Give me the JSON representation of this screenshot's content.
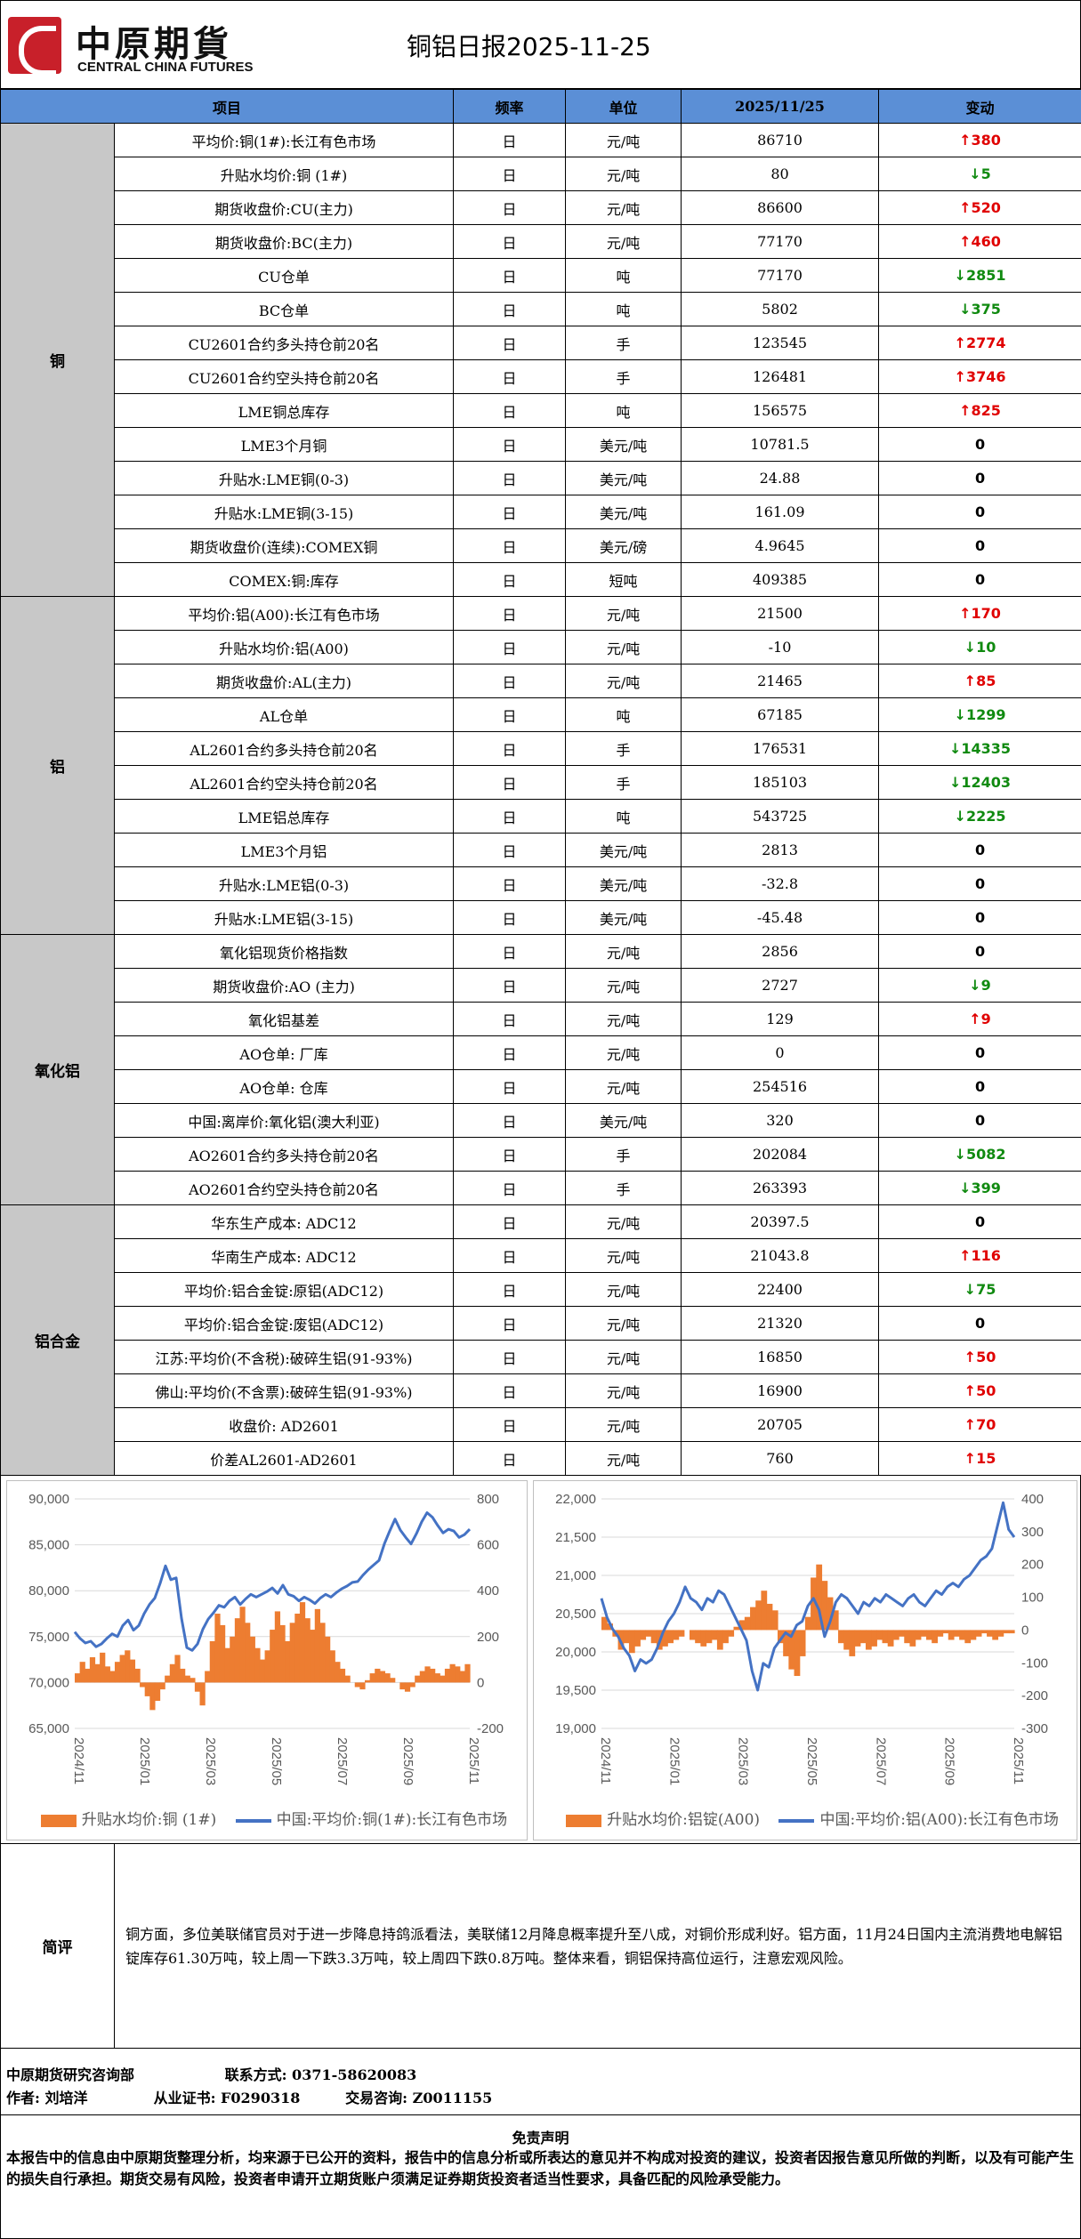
{
  "header": {
    "logo_cn": "中原期貨",
    "logo_en": "CENTRAL CHINA FUTURES",
    "title": "铜铝日报2025-11-25"
  },
  "table": {
    "columns": [
      "项目",
      "频率",
      "单位",
      "2025/11/25",
      "变动"
    ],
    "groups": [
      {
        "name": "铜",
        "rows": [
          {
            "item": "平均价:铜(1#):长江有色市场",
            "freq": "日",
            "unit": "元/吨",
            "value": "86710",
            "dir": "up",
            "change": "380"
          },
          {
            "item": "升贴水均价:铜 (1#)",
            "freq": "日",
            "unit": "元/吨",
            "value": "80",
            "dir": "down",
            "change": "5"
          },
          {
            "item": "期货收盘价:CU(主力)",
            "freq": "日",
            "unit": "元/吨",
            "value": "86600",
            "dir": "up",
            "change": "520"
          },
          {
            "item": "期货收盘价:BC(主力)",
            "freq": "日",
            "unit": "元/吨",
            "value": "77170",
            "dir": "up",
            "change": "460"
          },
          {
            "item": "CU仓单",
            "freq": "日",
            "unit": "吨",
            "value": "77170",
            "dir": "down",
            "change": "2851"
          },
          {
            "item": "BC仓单",
            "freq": "日",
            "unit": "吨",
            "value": "5802",
            "dir": "down",
            "change": "375"
          },
          {
            "item": "CU2601合约多头持仓前20名",
            "freq": "日",
            "unit": "手",
            "value": "123545",
            "dir": "up",
            "change": "2774"
          },
          {
            "item": "CU2601合约空头持仓前20名",
            "freq": "日",
            "unit": "手",
            "value": "126481",
            "dir": "up",
            "change": "3746"
          },
          {
            "item": "LME铜总库存",
            "freq": "日",
            "unit": "吨",
            "value": "156575",
            "dir": "up",
            "change": "825"
          },
          {
            "item": "LME3个月铜",
            "freq": "日",
            "unit": "美元/吨",
            "value": "10781.5",
            "dir": "flat",
            "change": "0"
          },
          {
            "item": "升贴水:LME铜(0-3)",
            "freq": "日",
            "unit": "美元/吨",
            "value": "24.88",
            "dir": "flat",
            "change": "0"
          },
          {
            "item": "升贴水:LME铜(3-15)",
            "freq": "日",
            "unit": "美元/吨",
            "value": "161.09",
            "dir": "flat",
            "change": "0"
          },
          {
            "item": "期货收盘价(连续):COMEX铜",
            "freq": "日",
            "unit": "美元/磅",
            "value": "4.9645",
            "dir": "flat",
            "change": "0"
          },
          {
            "item": "COMEX:铜:库存",
            "freq": "日",
            "unit": "短吨",
            "value": "409385",
            "dir": "flat",
            "change": "0"
          }
        ]
      },
      {
        "name": "铝",
        "rows": [
          {
            "item": "平均价:铝(A00):长江有色市场",
            "freq": "日",
            "unit": "元/吨",
            "value": "21500",
            "dir": "up",
            "change": "170"
          },
          {
            "item": "升贴水均价:铝(A00)",
            "freq": "日",
            "unit": "元/吨",
            "value": "-10",
            "dir": "down",
            "change": "10"
          },
          {
            "item": "期货收盘价:AL(主力)",
            "freq": "日",
            "unit": "元/吨",
            "value": "21465",
            "dir": "up",
            "change": "85"
          },
          {
            "item": "AL仓单",
            "freq": "日",
            "unit": "吨",
            "value": "67185",
            "dir": "down",
            "change": "1299"
          },
          {
            "item": "AL2601合约多头持仓前20名",
            "freq": "日",
            "unit": "手",
            "value": "176531",
            "dir": "down",
            "change": "14335"
          },
          {
            "item": "AL2601合约空头持仓前20名",
            "freq": "日",
            "unit": "手",
            "value": "185103",
            "dir": "down",
            "change": "12403"
          },
          {
            "item": "LME铝总库存",
            "freq": "日",
            "unit": "吨",
            "value": "543725",
            "dir": "down",
            "change": "2225"
          },
          {
            "item": "LME3个月铝",
            "freq": "日",
            "unit": "美元/吨",
            "value": "2813",
            "dir": "flat",
            "change": "0"
          },
          {
            "item": "升贴水:LME铝(0-3)",
            "freq": "日",
            "unit": "美元/吨",
            "value": "-32.8",
            "dir": "flat",
            "change": "0"
          },
          {
            "item": "升贴水:LME铝(3-15)",
            "freq": "日",
            "unit": "美元/吨",
            "value": "-45.48",
            "dir": "flat",
            "change": "0"
          }
        ]
      },
      {
        "name": "氧化铝",
        "rows": [
          {
            "item": "氧化铝现货价格指数",
            "freq": "日",
            "unit": "元/吨",
            "value": "2856",
            "dir": "flat",
            "change": "0"
          },
          {
            "item": "期货收盘价:AO (主力)",
            "freq": "日",
            "unit": "元/吨",
            "value": "2727",
            "dir": "down",
            "change": "9"
          },
          {
            "item": "氧化铝基差",
            "freq": "日",
            "unit": "元/吨",
            "value": "129",
            "dir": "up",
            "change": "9"
          },
          {
            "item": "AO仓单: 厂库",
            "freq": "日",
            "unit": "元/吨",
            "value": "0",
            "dir": "flat",
            "change": "0"
          },
          {
            "item": "AO仓单: 仓库",
            "freq": "日",
            "unit": "元/吨",
            "value": "254516",
            "dir": "flat",
            "change": "0"
          },
          {
            "item": "中国:离岸价:氧化铝(澳大利亚)",
            "freq": "日",
            "unit": "美元/吨",
            "value": "320",
            "dir": "flat",
            "change": "0"
          },
          {
            "item": "AO2601合约多头持仓前20名",
            "freq": "日",
            "unit": "手",
            "value": "202084",
            "dir": "down",
            "change": "5082"
          },
          {
            "item": "AO2601合约空头持仓前20名",
            "freq": "日",
            "unit": "手",
            "value": "263393",
            "dir": "down",
            "change": "399"
          }
        ]
      },
      {
        "name": "铝合金",
        "rows": [
          {
            "item": "华东生产成本: ADC12",
            "freq": "日",
            "unit": "元/吨",
            "value": "20397.5",
            "dir": "flat",
            "change": "0"
          },
          {
            "item": "华南生产成本: ADC12",
            "freq": "日",
            "unit": "元/吨",
            "value": "21043.8",
            "dir": "up",
            "change": "116"
          },
          {
            "item": "平均价:铝合金锭:原铝(ADC12)",
            "freq": "日",
            "unit": "元/吨",
            "value": "22400",
            "dir": "down",
            "change": "75"
          },
          {
            "item": "平均价:铝合金锭:废铝(ADC12)",
            "freq": "日",
            "unit": "元/吨",
            "value": "21320",
            "dir": "flat",
            "change": "0"
          },
          {
            "item": "江苏:平均价(不含税):破碎生铝(91-93%)",
            "freq": "日",
            "unit": "元/吨",
            "value": "16850",
            "dir": "up",
            "change": "50"
          },
          {
            "item": "佛山:平均价(不含票):破碎生铝(91-93%)",
            "freq": "日",
            "unit": "元/吨",
            "value": "16900",
            "dir": "up",
            "change": "50"
          },
          {
            "item": "收盘价: AD2601",
            "freq": "日",
            "unit": "元/吨",
            "value": "20705",
            "dir": "up",
            "change": "70"
          },
          {
            "item": "价差AL2601-AD2601",
            "freq": "日",
            "unit": "元/吨",
            "value": "760",
            "dir": "up",
            "change": "15"
          }
        ]
      }
    ]
  },
  "chart_data": [
    {
      "type": "line",
      "x_ticks": [
        "2024/11",
        "2025/01",
        "2025/03",
        "2025/05",
        "2025/07",
        "2025/09",
        "2025/11"
      ],
      "y_left": {
        "min": 65000,
        "max": 90000,
        "ticks": [
          "65,000",
          "70,000",
          "75,000",
          "80,000",
          "85,000",
          "90,000"
        ]
      },
      "y_right": {
        "min": -200,
        "max": 800,
        "ticks": [
          "-200",
          "0",
          "200",
          "400",
          "600",
          "800"
        ]
      },
      "legend_position": "bottom",
      "series": [
        {
          "name": "升贴水均价:铜 (1#)",
          "kind": "bar",
          "axis": "right",
          "color": "#ed7d31",
          "values": [
            40,
            90,
            60,
            110,
            80,
            130,
            70,
            50,
            90,
            120,
            140,
            100,
            60,
            -20,
            -60,
            -120,
            -80,
            -30,
            30,
            80,
            120,
            60,
            30,
            20,
            -40,
            -100,
            50,
            180,
            300,
            250,
            150,
            200,
            280,
            330,
            260,
            200,
            150,
            100,
            140,
            230,
            310,
            250,
            180,
            260,
            300,
            350,
            280,
            230,
            320,
            260,
            200,
            140,
            90,
            60,
            30,
            0,
            -20,
            -30,
            10,
            40,
            60,
            50,
            40,
            20,
            0,
            -30,
            -40,
            -20,
            30,
            50,
            70,
            60,
            40,
            30,
            60,
            80,
            70,
            50,
            80
          ]
        },
        {
          "name": "中国:平均价:铜(1#):长江有色市场",
          "kind": "line",
          "axis": "left",
          "color": "#4472c4",
          "values": [
            75500,
            74800,
            74300,
            74500,
            73900,
            74200,
            74800,
            75300,
            75000,
            76200,
            76800,
            75700,
            76200,
            77500,
            78500,
            79200,
            80800,
            82700,
            81200,
            81400,
            77000,
            73800,
            73500,
            74200,
            75800,
            76900,
            77600,
            78400,
            78200,
            78900,
            79300,
            78500,
            79100,
            79600,
            79300,
            79600,
            79900,
            80300,
            79700,
            80600,
            79600,
            79400,
            78900,
            79300,
            79000,
            78600,
            79200,
            79600,
            79300,
            79800,
            80200,
            80500,
            80900,
            81000,
            81700,
            82300,
            82800,
            83300,
            85100,
            86500,
            87800,
            86600,
            85800,
            85100,
            86200,
            87500,
            88500,
            88000,
            87100,
            86300,
            86700,
            86500,
            85800,
            86100,
            86700
          ]
        }
      ]
    },
    {
      "type": "line",
      "x_ticks": [
        "2024/11",
        "2025/01",
        "2025/03",
        "2025/05",
        "2025/07",
        "2025/09",
        "2025/11"
      ],
      "y_left": {
        "min": 19000,
        "max": 22000,
        "ticks": [
          "19,000",
          "19,500",
          "20,000",
          "20,500",
          "21,000",
          "21,500",
          "22,000"
        ]
      },
      "y_right": {
        "min": -300,
        "max": 400,
        "ticks": [
          "-300",
          "-200",
          "-100",
          "0",
          "100",
          "200",
          "300",
          "400"
        ]
      },
      "legend_position": "bottom",
      "series": [
        {
          "name": "升贴水均价:铝锭(A00)",
          "kind": "bar",
          "axis": "right",
          "color": "#ed7d31",
          "values": [
            40,
            20,
            -20,
            -60,
            -40,
            -70,
            -50,
            -30,
            -20,
            -40,
            -60,
            -50,
            -40,
            -30,
            -20,
            0,
            -30,
            -40,
            -50,
            -40,
            -30,
            -60,
            -40,
            -20,
            10,
            30,
            40,
            70,
            90,
            120,
            80,
            60,
            -40,
            -80,
            -120,
            -140,
            -80,
            40,
            160,
            200,
            150,
            100,
            60,
            -40,
            -60,
            -80,
            -50,
            -40,
            -60,
            -50,
            -30,
            -40,
            -50,
            -30,
            -20,
            -40,
            -50,
            -30,
            -20,
            -30,
            -40,
            -20,
            -10,
            -30,
            -20,
            -30,
            -40,
            -30,
            -20,
            -10,
            -20,
            -30,
            -20,
            -10,
            -10
          ]
        },
        {
          "name": "中国:平均价:铝(A00):长江有色市场",
          "kind": "line",
          "axis": "left",
          "color": "#4472c4",
          "values": [
            20700,
            20450,
            20300,
            20200,
            20050,
            19950,
            19750,
            19900,
            19850,
            19900,
            20050,
            20250,
            20400,
            20500,
            20650,
            20850,
            20700,
            20650,
            20550,
            20700,
            20650,
            20800,
            20750,
            20600,
            20450,
            20300,
            20150,
            19750,
            19500,
            19850,
            19800,
            20050,
            20150,
            20250,
            20200,
            20350,
            20400,
            20600,
            20700,
            20550,
            20200,
            20400,
            20650,
            20750,
            20700,
            20600,
            20500,
            20650,
            20600,
            20700,
            20650,
            20750,
            20700,
            20650,
            20600,
            20700,
            20750,
            20650,
            20600,
            20700,
            20800,
            20750,
            20850,
            20900,
            20850,
            20950,
            21000,
            21100,
            21200,
            21250,
            21350,
            21650,
            21950,
            21600,
            21500
          ]
        }
      ]
    }
  ],
  "summary": {
    "label": "简评",
    "text": "铜方面，多位美联储官员对于进一步降息持鸽派看法，美联储12月降息概率提升至八成，对铜价形成利好。铝方面，11月24日国内主流消费地电解铝锭库存61.30万吨，较上周一下跌3.3万吨，较上周四下跌0.8万吨。整体来看，铜铝保持高位运行，注意宏观风险。"
  },
  "contact": {
    "dept": "中原期货研究咨询部",
    "phone": "联系方式: 0371-58620083",
    "author": "作者: 刘培洋",
    "cert": "从业证书: F0290318",
    "consult": "交易咨询: Z0011155"
  },
  "disclaimer": {
    "title": "免责声明",
    "text": "本报告中的信息由中原期货整理分析，均来源于已公开的资料，报告中的信息分析或所表达的意见并不构成对投资的建议，投资者因报告意见所做的判断，以及有可能产生的损失自行承担。期货交易有风险，投资者申请开立期货账户须满足证券期货投资者适当性要求，具备匹配的风险承受能力。"
  }
}
